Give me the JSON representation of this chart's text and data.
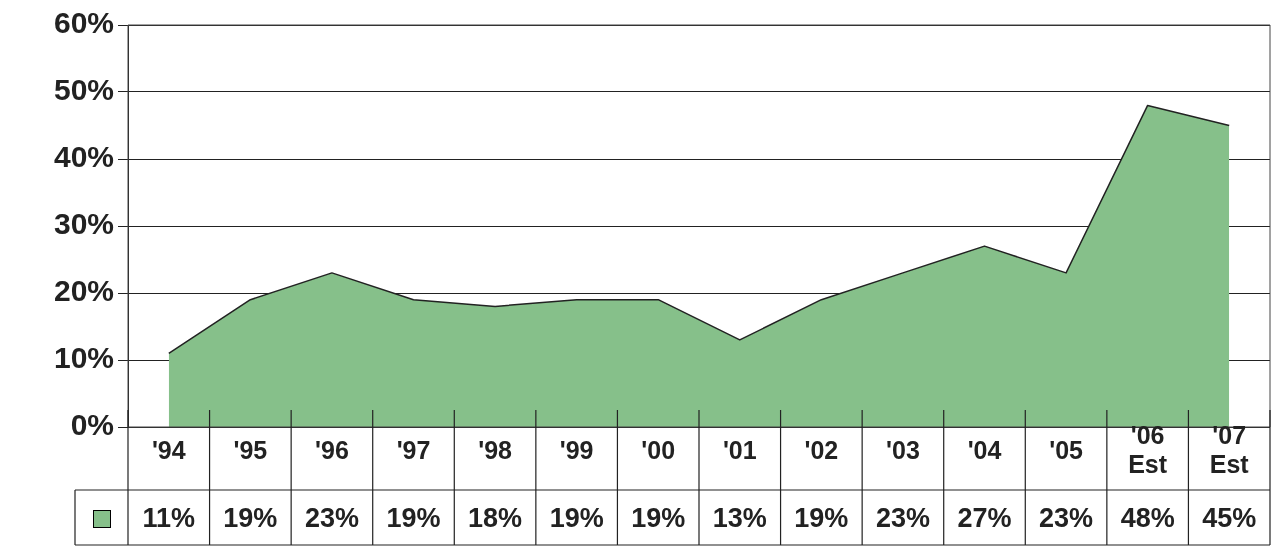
{
  "chart_data": {
    "type": "area",
    "categories": [
      "'94",
      "'95",
      "'96",
      "'97",
      "'98",
      "'99",
      "'00",
      "'01",
      "'02",
      "'03",
      "'04",
      "'05",
      "'06 Est",
      "'07 Est"
    ],
    "series": [
      {
        "color": "#86c08a",
        "values": [
          11,
          19,
          23,
          19,
          18,
          19,
          19,
          13,
          19,
          23,
          27,
          23,
          48,
          45
        ]
      }
    ],
    "ylim": [
      0,
      60
    ],
    "yticks": [
      {
        "value": 0,
        "label": "0%"
      },
      {
        "value": 10,
        "label": "10%"
      },
      {
        "value": 20,
        "label": "20%"
      },
      {
        "value": 30,
        "label": "30%"
      },
      {
        "value": 40,
        "label": "40%"
      },
      {
        "value": 50,
        "label": "50%"
      },
      {
        "value": 60,
        "label": "60%"
      }
    ],
    "grid": "y",
    "value_labels": [
      "11%",
      "19%",
      "23%",
      "19%",
      "18%",
      "19%",
      "19%",
      "13%",
      "19%",
      "23%",
      "27%",
      "23%",
      "48%",
      "45%"
    ]
  }
}
